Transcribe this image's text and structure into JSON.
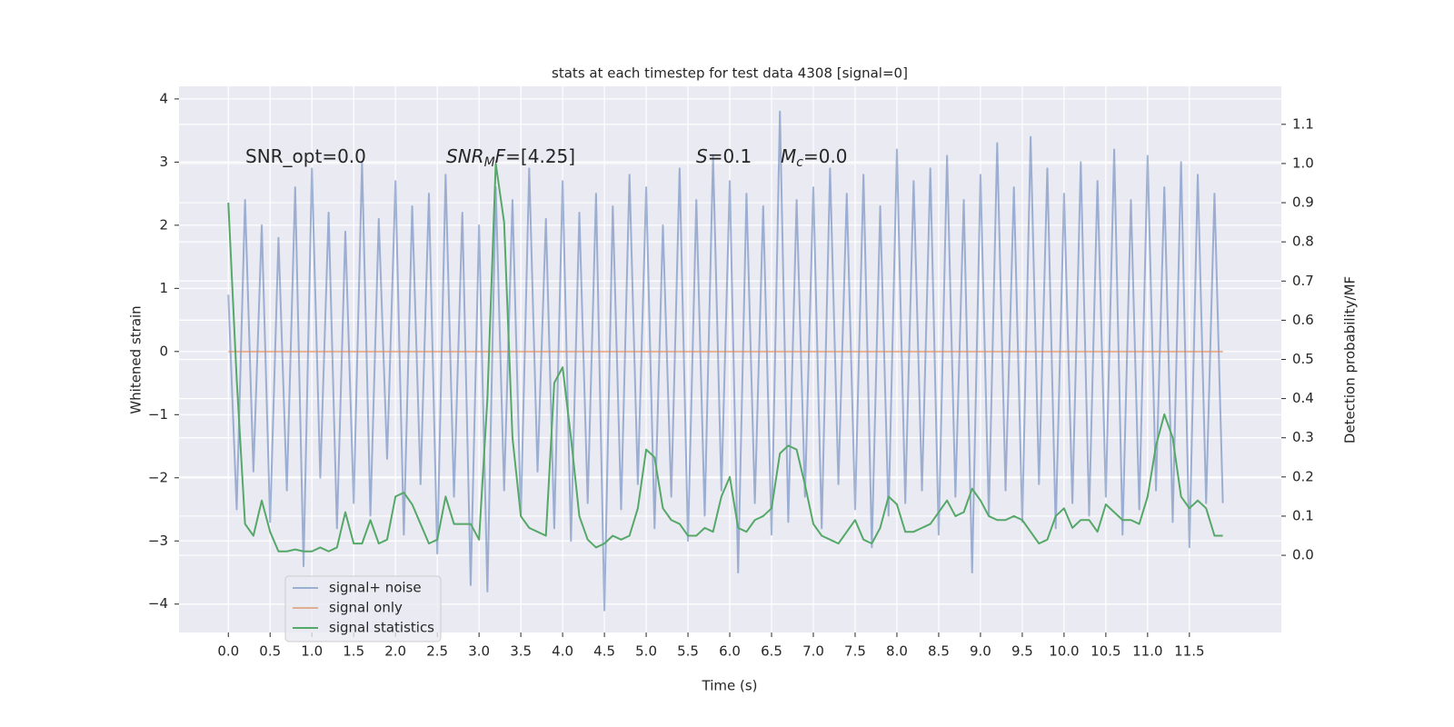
{
  "chart_data": {
    "type": "line",
    "title": "stats at each timestep for test data 4308 [signal=0]",
    "xlabel": "Time (s)",
    "ylabel": "Whitened strain",
    "y2label": "Detection probability/MF",
    "annotations": [
      [
        {
          "text": "SNR_opt=0.0"
        }
      ],
      [
        {
          "text": "SNR",
          "italic": true
        },
        {
          "text": "M",
          "italic": true,
          "sub": true
        },
        {
          "text": "F",
          "italic": true
        },
        {
          "text": "=[4.25]"
        }
      ],
      [
        {
          "text": "S",
          "italic": true
        },
        {
          "text": "=0.1"
        }
      ],
      [
        {
          "text": "M",
          "italic": true
        },
        {
          "text": "c",
          "italic": true,
          "sub": true
        },
        {
          "text": "=0.0"
        }
      ]
    ],
    "x": [
      0,
      0.1,
      0.2,
      0.3,
      0.4,
      0.5,
      0.6,
      0.7,
      0.8,
      0.9,
      1,
      1.1,
      1.2,
      1.3,
      1.4,
      1.5,
      1.6,
      1.7,
      1.8,
      1.9,
      2,
      2.1,
      2.2,
      2.3,
      2.4,
      2.5,
      2.6,
      2.7,
      2.8,
      2.9,
      3,
      3.1,
      3.2,
      3.3,
      3.4,
      3.5,
      3.6,
      3.7,
      3.8,
      3.9,
      4,
      4.1,
      4.2,
      4.3,
      4.4,
      4.5,
      4.6,
      4.7,
      4.8,
      4.9,
      5,
      5.1,
      5.2,
      5.3,
      5.4,
      5.5,
      5.6,
      5.7,
      5.8,
      5.9,
      6,
      6.1,
      6.2,
      6.3,
      6.4,
      6.5,
      6.6,
      6.7,
      6.8,
      6.9,
      7,
      7.1,
      7.2,
      7.3,
      7.4,
      7.5,
      7.6,
      7.7,
      7.8,
      7.9,
      8,
      8.1,
      8.2,
      8.3,
      8.4,
      8.5,
      8.6,
      8.7,
      8.8,
      8.9,
      9,
      9.1,
      9.2,
      9.3,
      9.4,
      9.5,
      9.6,
      9.7,
      9.8,
      9.9,
      10,
      10.1,
      10.2,
      10.3,
      10.4,
      10.5,
      10.6,
      10.7,
      10.8,
      10.9,
      11,
      11.1,
      11.2,
      11.3,
      11.4,
      11.5,
      11.6,
      11.7,
      11.8,
      11.9
    ],
    "series": [
      {
        "name": "signal+ noise",
        "color": "#4c72b0",
        "opacity": 0.5,
        "axis": "y",
        "values": [
          0.9,
          -2.5,
          2.4,
          -1.9,
          2.0,
          -2.7,
          1.8,
          -2.2,
          2.6,
          -3.4,
          2.9,
          -2.0,
          2.2,
          -2.8,
          1.9,
          -2.4,
          3.0,
          -2.6,
          2.1,
          -1.7,
          2.7,
          -2.9,
          2.3,
          -2.1,
          2.5,
          -3.2,
          2.8,
          -2.3,
          2.2,
          -3.7,
          2.0,
          -3.8,
          2.6,
          -2.2,
          2.4,
          -2.6,
          2.9,
          -1.9,
          2.1,
          -2.8,
          2.7,
          -3.0,
          2.2,
          -2.4,
          2.5,
          -4.1,
          2.3,
          -2.5,
          2.8,
          -2.1,
          2.6,
          -2.8,
          2.0,
          -2.3,
          2.9,
          -3.0,
          2.4,
          -2.6,
          3.1,
          -2.2,
          2.7,
          -3.5,
          2.5,
          -2.4,
          2.3,
          -2.9,
          3.8,
          -2.7,
          2.4,
          -2.3,
          2.6,
          -2.8,
          2.9,
          -2.1,
          2.5,
          -2.5,
          2.8,
          -3.1,
          2.3,
          -2.6,
          3.2,
          -2.4,
          2.7,
          -2.2,
          2.9,
          -2.9,
          3.1,
          -2.3,
          2.4,
          -3.5,
          2.8,
          -2.6,
          3.3,
          -2.2,
          2.6,
          -2.7,
          3.4,
          -2.1,
          2.9,
          -2.8,
          2.5,
          -2.4,
          3.0,
          -2.6,
          2.7,
          -2.3,
          3.2,
          -2.9,
          2.4,
          -2.5,
          3.1,
          -2.2,
          2.6,
          -2.7,
          3.0,
          -3.1,
          2.8,
          -2.4,
          2.5,
          -2.4
        ]
      },
      {
        "name": "signal only",
        "color": "#dd8452",
        "opacity": 0.6,
        "axis": "y",
        "values": [
          0,
          0,
          0,
          0,
          0,
          0,
          0,
          0,
          0,
          0,
          0,
          0,
          0,
          0,
          0,
          0,
          0,
          0,
          0,
          0,
          0,
          0,
          0,
          0,
          0,
          0,
          0,
          0,
          0,
          0,
          0,
          0,
          0,
          0,
          0,
          0,
          0,
          0,
          0,
          0,
          0,
          0,
          0,
          0,
          0,
          0,
          0,
          0,
          0,
          0,
          0,
          0,
          0,
          0,
          0,
          0,
          0,
          0,
          0,
          0,
          0,
          0,
          0,
          0,
          0,
          0,
          0,
          0,
          0,
          0,
          0,
          0,
          0,
          0,
          0,
          0,
          0,
          0,
          0,
          0,
          0,
          0,
          0,
          0,
          0,
          0,
          0,
          0,
          0,
          0,
          0,
          0,
          0,
          0,
          0,
          0,
          0,
          0,
          0,
          0,
          0,
          0,
          0,
          0,
          0,
          0,
          0,
          0,
          0,
          0,
          0,
          0,
          0,
          0,
          0,
          0,
          0,
          0,
          0,
          0
        ]
      },
      {
        "name": "signal statistics",
        "color": "#55a868",
        "opacity": 1,
        "axis": "y2",
        "values": [
          0.9,
          0.45,
          0.08,
          0.05,
          0.14,
          0.06,
          0.01,
          0.01,
          0.015,
          0.01,
          0.01,
          0.02,
          0.01,
          0.02,
          0.11,
          0.03,
          0.03,
          0.09,
          0.03,
          0.04,
          0.15,
          0.16,
          0.13,
          0.08,
          0.03,
          0.04,
          0.15,
          0.08,
          0.08,
          0.08,
          0.04,
          0.4,
          1.0,
          0.85,
          0.3,
          0.1,
          0.07,
          0.06,
          0.05,
          0.44,
          0.48,
          0.3,
          0.1,
          0.04,
          0.02,
          0.03,
          0.05,
          0.04,
          0.05,
          0.12,
          0.27,
          0.25,
          0.12,
          0.09,
          0.08,
          0.05,
          0.05,
          0.07,
          0.06,
          0.15,
          0.2,
          0.07,
          0.06,
          0.09,
          0.1,
          0.12,
          0.26,
          0.28,
          0.27,
          0.18,
          0.08,
          0.05,
          0.04,
          0.03,
          0.06,
          0.09,
          0.04,
          0.03,
          0.07,
          0.15,
          0.13,
          0.06,
          0.06,
          0.07,
          0.08,
          0.11,
          0.14,
          0.1,
          0.11,
          0.17,
          0.14,
          0.1,
          0.09,
          0.09,
          0.1,
          0.09,
          0.06,
          0.03,
          0.04,
          0.1,
          0.12,
          0.07,
          0.09,
          0.09,
          0.06,
          0.13,
          0.11,
          0.09,
          0.09,
          0.08,
          0.15,
          0.28,
          0.36,
          0.3,
          0.15,
          0.12,
          0.14,
          0.12,
          0.05,
          0.05
        ]
      }
    ],
    "xlim": [
      -0.59,
      12.6
    ],
    "xticks": [
      {
        "value": 0,
        "label": "0.0"
      },
      0.5,
      {
        "value": 1,
        "label": "1.0"
      },
      1.5,
      {
        "value": 2,
        "label": "2.0"
      },
      2.5,
      {
        "value": 3,
        "label": "3.0"
      },
      3.5,
      {
        "value": 4,
        "label": "4.0"
      },
      4.5,
      {
        "value": 5,
        "label": "5.0"
      },
      5.5,
      {
        "value": 6,
        "label": "6.0"
      },
      6.5,
      {
        "value": 7,
        "label": "7.0"
      },
      7.5,
      {
        "value": 8,
        "label": "8.0"
      },
      8.5,
      {
        "value": 9,
        "label": "9.0"
      },
      9.5,
      {
        "value": 10,
        "label": "10.0"
      },
      10.5,
      {
        "value": 11,
        "label": "11.0"
      },
      11.5
    ],
    "ylim": [
      -4.45,
      4.2
    ],
    "yticks": [
      {
        "value": -4,
        "label": "−4"
      },
      {
        "value": -3,
        "label": "−3"
      },
      {
        "value": -2,
        "label": "−2"
      },
      {
        "value": -1,
        "label": "−1"
      },
      0,
      1,
      2,
      3,
      4
    ],
    "y2lim": [
      -0.197,
      1.197
    ],
    "y2ticks": [
      {
        "value": 0,
        "label": "0.0"
      },
      0.1,
      0.2,
      0.3,
      0.4,
      0.5,
      0.6,
      0.7,
      0.8,
      0.9,
      {
        "value": 1,
        "label": "1.0"
      },
      1.1
    ],
    "grid": true,
    "legend": "lower left"
  }
}
